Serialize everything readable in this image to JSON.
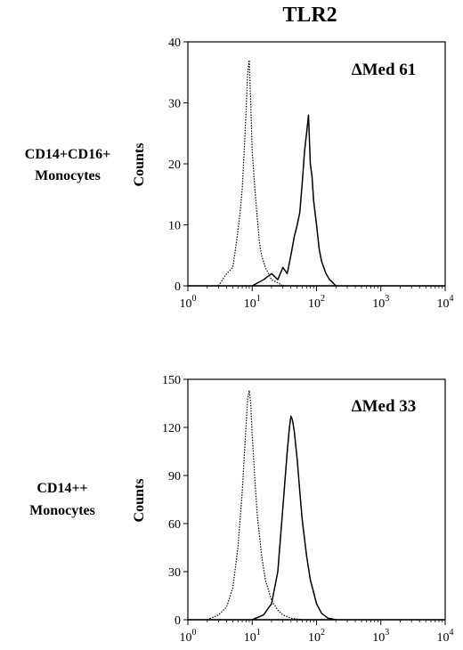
{
  "figure_title": "TLR2",
  "panels": [
    {
      "row_label_lines": [
        "CD14+CD16+",
        "Monocytes"
      ],
      "ylabel": "Counts",
      "annotation": "ΔMed 61",
      "yticks": [
        "0",
        "10",
        "20",
        "30",
        "40"
      ],
      "xtick_bases": [
        "10",
        "10",
        "10",
        "10",
        "10"
      ],
      "xtick_exps": [
        "0",
        "1",
        "2",
        "3",
        "4"
      ]
    },
    {
      "row_label_lines": [
        "CD14++",
        "Monocytes"
      ],
      "ylabel": "Counts",
      "annotation": "ΔMed 33",
      "yticks": [
        "0",
        "30",
        "60",
        "90",
        "120",
        "150"
      ],
      "xtick_bases": [
        "10",
        "10",
        "10",
        "10",
        "10"
      ],
      "xtick_exps": [
        "0",
        "1",
        "2",
        "3",
        "4"
      ]
    }
  ],
  "chart_data": [
    {
      "type": "line",
      "title": "TLR2",
      "ylabel": "Counts",
      "xscale": "log",
      "xlim": [
        1,
        10000
      ],
      "ylim": [
        0,
        40
      ],
      "yticks": [
        0,
        10,
        20,
        30,
        40
      ],
      "xticks": [
        1,
        10,
        100,
        1000,
        10000
      ],
      "annotation": "ΔMed 61",
      "series": [
        {
          "style": "dotted",
          "color": "#000000",
          "x": [
            3,
            4,
            5,
            5.5,
            6,
            6.5,
            7,
            7.5,
            8,
            8.5,
            9,
            9.5,
            10,
            11,
            12,
            13,
            14,
            16,
            18,
            20,
            25,
            30
          ],
          "y": [
            0,
            2,
            3,
            6,
            9,
            12,
            16,
            22,
            28,
            35,
            37,
            30,
            22,
            16,
            11,
            7,
            5,
            3,
            2,
            1,
            0.5,
            0
          ]
        },
        {
          "style": "solid",
          "color": "#000000",
          "x": [
            10,
            15,
            20,
            25,
            30,
            35,
            40,
            45,
            50,
            55,
            60,
            65,
            70,
            75,
            80,
            85,
            90,
            100,
            110,
            120,
            140,
            160,
            180,
            200
          ],
          "y": [
            0,
            1,
            2,
            1,
            3,
            2,
            5,
            8,
            10,
            12,
            17,
            22,
            25,
            28,
            20,
            18,
            14,
            10,
            6,
            4,
            2,
            1,
            0.5,
            0
          ]
        }
      ]
    },
    {
      "type": "line",
      "title": "",
      "ylabel": "Counts",
      "xscale": "log",
      "xlim": [
        1,
        10000
      ],
      "ylim": [
        0,
        150
      ],
      "yticks": [
        0,
        30,
        60,
        90,
        120,
        150
      ],
      "xticks": [
        1,
        10,
        100,
        1000,
        10000
      ],
      "annotation": "ΔMed 33",
      "series": [
        {
          "style": "dotted",
          "color": "#000000",
          "x": [
            2,
            3,
            4,
            5,
            6,
            7,
            8,
            8.5,
            9,
            9.5,
            10,
            11,
            12,
            14,
            16,
            20,
            25,
            30,
            40,
            60
          ],
          "y": [
            0,
            3,
            8,
            20,
            45,
            80,
            120,
            138,
            143,
            135,
            115,
            88,
            65,
            40,
            25,
            12,
            6,
            3,
            1,
            0
          ]
        },
        {
          "style": "solid",
          "color": "#000000",
          "x": [
            10,
            15,
            20,
            25,
            30,
            35,
            38,
            40,
            42,
            45,
            50,
            55,
            60,
            70,
            80,
            100,
            120,
            150,
            200
          ],
          "y": [
            0,
            3,
            10,
            30,
            70,
            105,
            120,
            127,
            125,
            118,
            100,
            80,
            62,
            40,
            25,
            10,
            4,
            1,
            0
          ]
        }
      ]
    }
  ]
}
